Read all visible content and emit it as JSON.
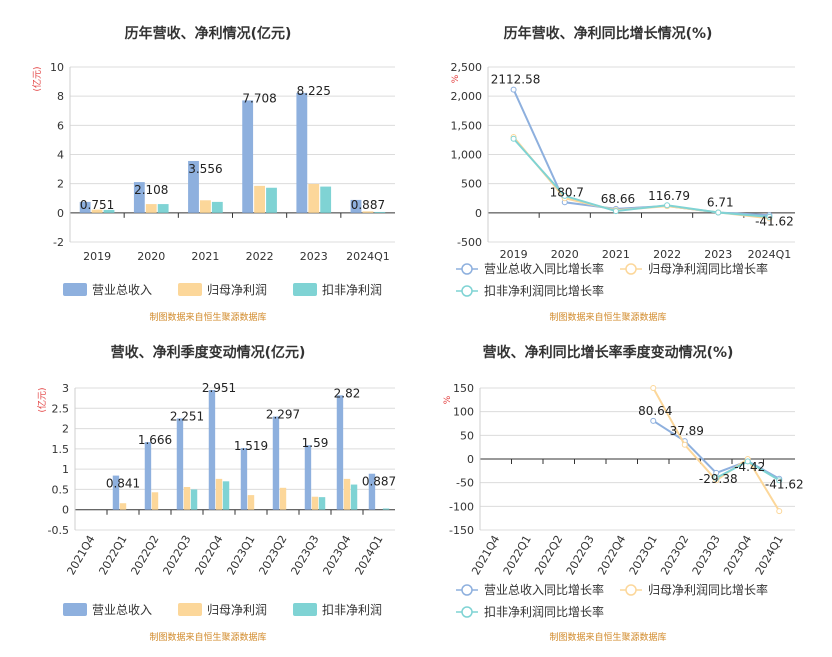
{
  "source_note": "制图数据来自恒生聚源数据库",
  "chart_data": [
    {
      "type": "bar",
      "title": "历年营收、净利情况(亿元)",
      "ylabel": "(亿元)",
      "ylim": [
        -2,
        10
      ],
      "yticks": [
        -2,
        0,
        2,
        4,
        6,
        8,
        10
      ],
      "categories": [
        "2019",
        "2020",
        "2021",
        "2022",
        "2023",
        "2024Q1"
      ],
      "series": [
        {
          "name": "营业总收入",
          "color": "#8eb0de",
          "values": [
            0.751,
            2.108,
            3.556,
            7.708,
            8.225,
            0.887
          ],
          "labels": [
            "0.751",
            "2.108",
            "3.556",
            "7.708",
            "8.225",
            "0.887"
          ]
        },
        {
          "name": "归母净利润",
          "color": "#fcd79a",
          "values": [
            0.22,
            0.6,
            0.86,
            1.85,
            1.98,
            0.1
          ]
        },
        {
          "name": "扣非净利润",
          "color": "#7fd3d4",
          "values": [
            0.2,
            0.6,
            0.75,
            1.72,
            1.8,
            0.06
          ]
        }
      ],
      "legend": "bottom",
      "grid": true
    },
    {
      "type": "line",
      "title": "历年营收、净利同比增长情况(%)",
      "ylabel": "%",
      "ylim": [
        -500,
        2500
      ],
      "yticks": [
        -500,
        0,
        500,
        1000,
        1500,
        2000,
        2500
      ],
      "ytick_labels": [
        "-500",
        "0",
        "500",
        "1,000",
        "1,500",
        "2,000",
        "2,500"
      ],
      "categories": [
        "2019",
        "2020",
        "2021",
        "2022",
        "2023",
        "2024Q1"
      ],
      "series": [
        {
          "name": "营业总收入同比增长率",
          "color": "#8eb0de",
          "values": [
            2112.58,
            180.7,
            68.66,
            116.79,
            6.71,
            -41.62
          ],
          "labels": [
            "2112.58",
            "180.7",
            "68.66",
            "116.79",
            "6.71",
            "-41.62"
          ]
        },
        {
          "name": "归母净利润同比增长率",
          "color": "#fcd79a",
          "values": [
            1300,
            250,
            45,
            115,
            8,
            -95
          ]
        },
        {
          "name": "扣非净利润同比增长率",
          "color": "#7fd3d4",
          "values": [
            1270,
            290,
            30,
            130,
            5,
            -70
          ]
        }
      ],
      "legend": "bottom",
      "grid": true
    },
    {
      "type": "bar",
      "title": "营收、净利季度变动情况(亿元)",
      "ylabel": "(亿元)",
      "ylim": [
        -0.5,
        3
      ],
      "yticks": [
        -0.5,
        0,
        0.5,
        1,
        1.5,
        2,
        2.5,
        3
      ],
      "categories": [
        "2021Q4",
        "2022Q1",
        "2022Q2",
        "2022Q3",
        "2022Q4",
        "2023Q1",
        "2023Q2",
        "2023Q3",
        "2023Q4",
        "2024Q1"
      ],
      "series": [
        {
          "name": "营业总收入",
          "color": "#8eb0de",
          "values": [
            0,
            0.841,
            1.666,
            2.251,
            2.951,
            1.519,
            2.297,
            1.59,
            2.82,
            0.887
          ],
          "labels": [
            "",
            "0.841",
            "1.666",
            "2.251",
            "2.951",
            "1.519",
            "2.297",
            "1.59",
            "2.82",
            "0.887"
          ]
        },
        {
          "name": "归母净利润",
          "color": "#fcd79a",
          "values": [
            0,
            0.16,
            0.43,
            0.56,
            0.76,
            0.36,
            0.54,
            0.32,
            0.76,
            0.0
          ]
        },
        {
          "name": "扣非净利润",
          "color": "#7fd3d4",
          "values": [
            0,
            0,
            0,
            0.5,
            0.7,
            0,
            0,
            0.31,
            0.62,
            0.03
          ]
        }
      ],
      "legend": "bottom",
      "grid": true
    },
    {
      "type": "line",
      "title": "营收、净利同比增长率季度变动情况(%)",
      "ylabel": "%",
      "ylim": [
        -150,
        150
      ],
      "yticks": [
        -150,
        -100,
        -50,
        0,
        50,
        100,
        150
      ],
      "categories": [
        "2021Q4",
        "2022Q1",
        "2022Q2",
        "2022Q3",
        "2022Q4",
        "2023Q1",
        "2023Q2",
        "2023Q3",
        "2023Q4",
        "2024Q1"
      ],
      "series": [
        {
          "name": "营业总收入同比增长率",
          "color": "#8eb0de",
          "values": [
            null,
            null,
            null,
            null,
            null,
            80.64,
            37.89,
            -29.38,
            -4.42,
            -41.62
          ],
          "labels": [
            "",
            "",
            "",
            "",
            "",
            "80.64",
            "37.89",
            "-29.38",
            "-4.42",
            "-41.62"
          ]
        },
        {
          "name": "归母净利润同比增长率",
          "color": "#fcd79a",
          "values": [
            null,
            null,
            null,
            null,
            null,
            150,
            30,
            -45,
            0,
            -110
          ]
        },
        {
          "name": "扣非净利润同比增长率",
          "color": "#7fd3d4",
          "values": [
            null,
            null,
            null,
            null,
            null,
            null,
            null,
            -40,
            -5,
            -45
          ]
        }
      ],
      "legend": "bottom",
      "grid": true
    }
  ]
}
